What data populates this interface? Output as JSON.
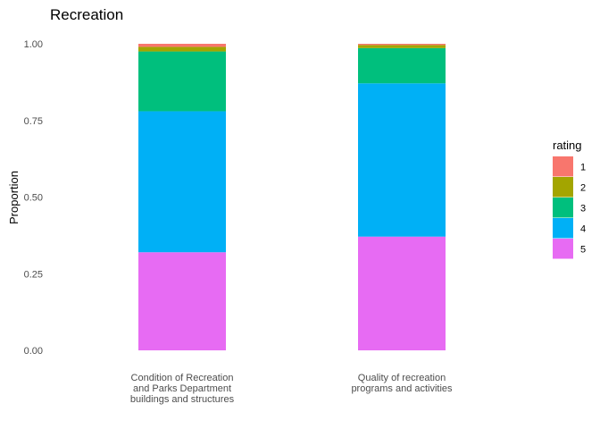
{
  "chart_data": {
    "type": "bar",
    "stacked": true,
    "title": "Recreation",
    "xlabel": "",
    "ylabel": "Proportion",
    "ylim": [
      0,
      1
    ],
    "y_ticks": [
      "0.00",
      "0.25",
      "0.50",
      "0.75",
      "1.00"
    ],
    "grid": false,
    "categories": [
      [
        "Condition of Recreation",
        "and Parks Department",
        "buildings and structures"
      ],
      [
        "Quality of recreation",
        "programs and activities"
      ]
    ],
    "legend": {
      "title": "rating",
      "position": "right"
    },
    "series": [
      {
        "name": "1",
        "color": "#F8766D",
        "values": [
          0.01,
          0.004
        ]
      },
      {
        "name": "2",
        "color": "#A3A500",
        "values": [
          0.015,
          0.01
        ]
      },
      {
        "name": "3",
        "color": "#00BF7D",
        "values": [
          0.195,
          0.115
        ]
      },
      {
        "name": "4",
        "color": "#00B0F6",
        "values": [
          0.46,
          0.5
        ]
      },
      {
        "name": "5",
        "color": "#E76BF3",
        "values": [
          0.32,
          0.371
        ]
      }
    ]
  }
}
